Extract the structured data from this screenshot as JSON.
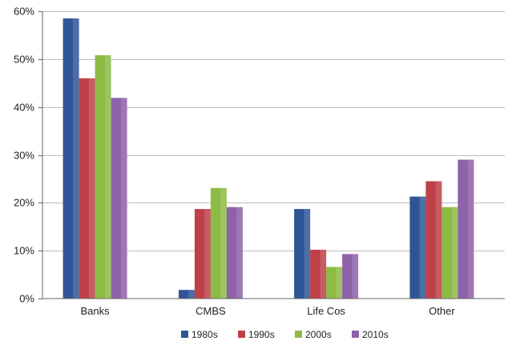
{
  "chart_data": {
    "type": "bar",
    "categories": [
      "Banks",
      "CMBS",
      "Life Cos",
      "Other"
    ],
    "series": [
      {
        "name": "1980s",
        "color": "#2f5597",
        "values": [
          58.5,
          1.8,
          18.7,
          21.3
        ]
      },
      {
        "name": "1990s",
        "color": "#c0404a",
        "values": [
          46.0,
          18.7,
          10.2,
          24.5
        ]
      },
      {
        "name": "2000s",
        "color": "#8dbb45",
        "values": [
          50.8,
          23.1,
          6.6,
          19.1
        ]
      },
      {
        "name": "2010s",
        "color": "#8e62a8",
        "values": [
          41.9,
          19.1,
          9.3,
          29.0
        ]
      }
    ],
    "ylim": [
      0,
      60
    ],
    "yticks": [
      0,
      10,
      20,
      30,
      40,
      50,
      60
    ],
    "ytick_labels": [
      "0%",
      "10%",
      "20%",
      "30%",
      "40%",
      "50%",
      "60%"
    ],
    "grid": true,
    "legend_position": "bottom",
    "title": "",
    "xlabel": "",
    "ylabel": ""
  }
}
